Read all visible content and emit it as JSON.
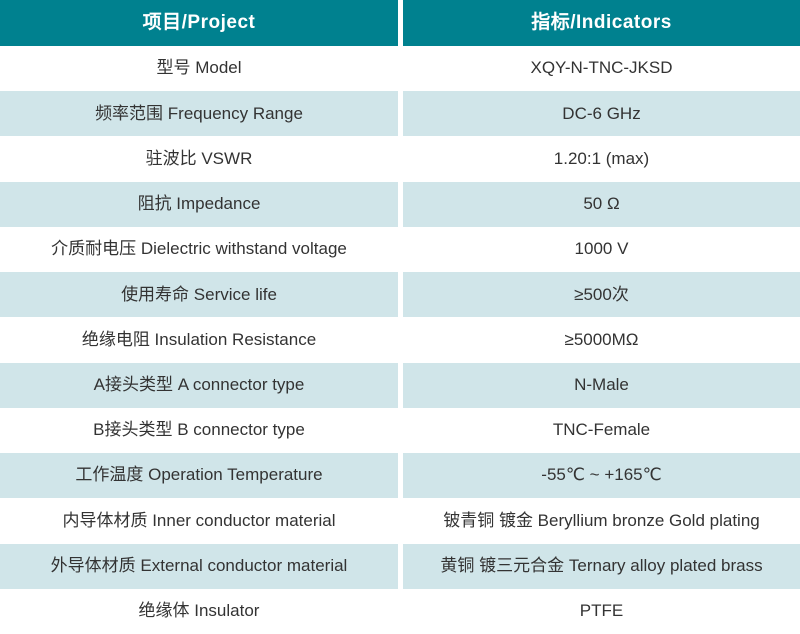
{
  "colors": {
    "header_bg": "#00818F",
    "header_text": "#FFFFFF",
    "stripe_bg": "#D0E5E9",
    "row_bg": "#FFFFFF",
    "body_text": "#333333"
  },
  "table": {
    "header": {
      "project": "项目/Project",
      "indicators": "指标/Indicators"
    },
    "rows": [
      {
        "project": "型号 Model",
        "indicator": "XQY-N-TNC-JKSD"
      },
      {
        "project": "频率范围 Frequency Range",
        "indicator": "DC-6 GHz"
      },
      {
        "project": "驻波比 VSWR",
        "indicator": "1.20:1 (max)"
      },
      {
        "project": "阻抗 Impedance",
        "indicator": "50 Ω"
      },
      {
        "project": "介质耐电压 Dielectric withstand voltage",
        "indicator": "1000 V"
      },
      {
        "project": "使用寿命 Service life",
        "indicator": "≥500次"
      },
      {
        "project": "绝缘电阻 Insulation Resistance",
        "indicator": "≥5000MΩ"
      },
      {
        "project": "A接头类型 A connector type",
        "indicator": "N-Male"
      },
      {
        "project": "B接头类型 B connector type",
        "indicator": "TNC-Female"
      },
      {
        "project": "工作温度 Operation Temperature",
        "indicator": "-55℃ ~ +165℃"
      },
      {
        "project": "内导体材质 Inner conductor material",
        "indicator": "铍青铜 镀金 Beryllium bronze Gold plating"
      },
      {
        "project": "外导体材质 External conductor material",
        "indicator": "黄铜 镀三元合金 Ternary alloy plated brass"
      },
      {
        "project": "绝缘体 Insulator",
        "indicator": "PTFE"
      }
    ]
  }
}
